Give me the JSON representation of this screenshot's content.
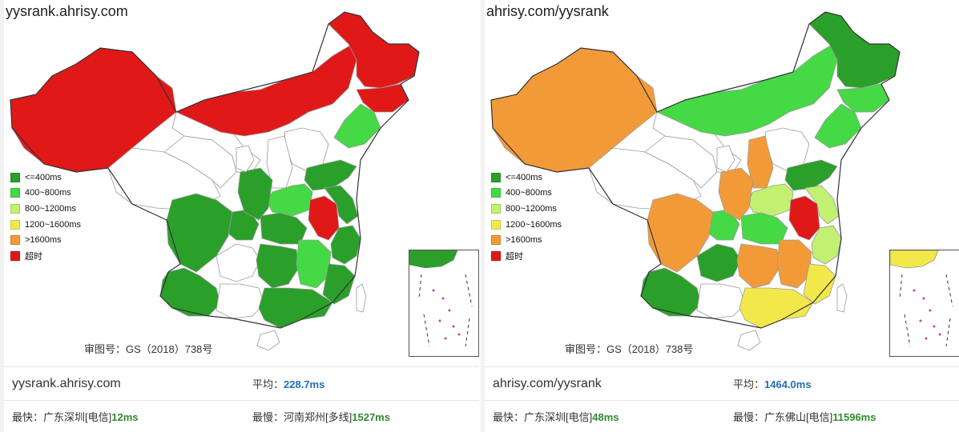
{
  "legend_colors": {
    "lt400": "#2aa02a",
    "r400_800": "#45d945",
    "r800_1200": "#c2f070",
    "r1200_1600": "#f2e84a",
    "gt1600": "#f39a38",
    "timeout": "#e01818",
    "none": "#ffffff"
  },
  "legend": [
    {
      "label": "<=400ms",
      "color": "#2aa02a"
    },
    {
      "label": "400~800ms",
      "color": "#45d945"
    },
    {
      "label": "800~1200ms",
      "color": "#c2f070"
    },
    {
      "label": "1200~1600ms",
      "color": "#f2e84a"
    },
    {
      "label": ">1600ms",
      "color": "#f39a38"
    },
    {
      "label": "超时",
      "color": "#e01818"
    }
  ],
  "approval_number": "审图号：GS（2018）738号",
  "panels": [
    {
      "map_title": "yysrank.ahrisy.com",
      "site": "yysrank.ahrisy.com",
      "avg_label": "平均：",
      "avg_value": "228.7ms",
      "fastest_label": "最快：",
      "fastest_location": "广东深圳[电信]",
      "fastest_value": "12ms",
      "slowest_label": "最慢：",
      "slowest_location": "河南郑州[多线]",
      "slowest_value": "1527ms",
      "regions": {
        "xinjiang": "timeout",
        "tibet": "none",
        "qinghai": "none",
        "gansu": "none",
        "inner_mongolia": "timeout",
        "heilongjiang": "timeout",
        "jilin": "timeout",
        "liaoning": "r400_800",
        "beijing": "timeout",
        "hebei": "none",
        "shanxi": "none",
        "shandong": "lt400",
        "henan": "r400_800",
        "anhui": "timeout",
        "jiangsu": "lt400",
        "sichuan": "lt400",
        "chongqing": "lt400",
        "yunnan": "lt400",
        "guizhou": "none",
        "hubei": "lt400",
        "hunan": "lt400",
        "jiangxi": "r400_800",
        "zhejiang": "lt400",
        "fujian": "lt400",
        "guangxi": "none",
        "guangdong": "lt400",
        "shaanxi": "lt400",
        "ningxia": "none",
        "hainan": "none",
        "taiwan": "none",
        "inset": "lt400"
      }
    },
    {
      "map_title": "ahrisy.com/yysrank",
      "site": "ahrisy.com/yysrank",
      "avg_label": "平均：",
      "avg_value": "1464.0ms",
      "fastest_label": "最快：",
      "fastest_location": "广东深圳[电信]",
      "fastest_value": "48ms",
      "slowest_label": "最慢：",
      "slowest_location": "广东佛山[电信]",
      "slowest_value": "11596ms",
      "regions": {
        "xinjiang": "gt1600",
        "tibet": "none",
        "qinghai": "none",
        "gansu": "none",
        "inner_mongolia": "r400_800",
        "heilongjiang": "lt400",
        "jilin": "r400_800",
        "liaoning": "r400_800",
        "beijing": "gt1600",
        "hebei": "none",
        "shanxi": "gt1600",
        "shandong": "lt400",
        "henan": "r800_1200",
        "anhui": "timeout",
        "jiangsu": "r800_1200",
        "sichuan": "gt1600",
        "chongqing": "r400_800",
        "yunnan": "lt400",
        "guizhou": "lt400",
        "hubei": "r400_800",
        "hunan": "gt1600",
        "jiangxi": "gt1600",
        "zhejiang": "r800_1200",
        "fujian": "r1200_1600",
        "guangxi": "none",
        "guangdong": "r1200_1600",
        "shaanxi": "gt1600",
        "ningxia": "none",
        "hainan": "none",
        "taiwan": "none",
        "inset": "r1200_1600"
      }
    }
  ]
}
